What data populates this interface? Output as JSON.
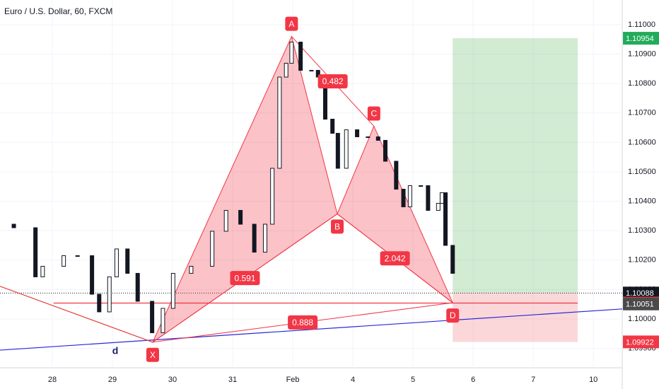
{
  "chart_data": {
    "type": "candlestick",
    "title": "Euro / U.S. Dollar, 60, FXCM",
    "x": [
      -0.87,
      -0.64,
      -0.28,
      -0.16,
      0.19,
      0.42,
      0.66,
      0.78,
      0.95,
      1.07,
      1.25,
      1.42,
      1.66,
      1.84,
      2.01,
      2.31,
      2.66,
      2.89,
      3.13,
      3.36,
      3.54,
      3.66,
      3.78,
      3.89,
      3.98,
      4.13,
      4.31,
      4.42,
      4.54,
      4.66,
      4.75,
      4.89,
      5.07,
      5.25,
      5.42,
      5.54,
      5.72,
      5.84,
      5.95,
      6.13,
      6.25,
      6.42,
      6.48,
      6.54,
      6.66
    ],
    "values": [
      1.10322,
      1.1031,
      1.10143,
      1.10179,
      1.10215,
      1.10215,
      1.10084,
      1.10024,
      1.10143,
      1.10238,
      1.10155,
      1.1006,
      1.09953,
      1.10036,
      1.10155,
      1.10179,
      1.10298,
      1.10369,
      1.10322,
      1.10227,
      1.10322,
      1.10512,
      1.10822,
      1.10869,
      1.10941,
      1.10845,
      1.10845,
      1.10822,
      1.10679,
      1.10631,
      1.10512,
      1.10643,
      1.10619,
      1.10619,
      1.10607,
      1.10536,
      1.10441,
      1.10381,
      1.10453,
      1.10453,
      1.10369,
      1.10393,
      1.10429,
      1.1025,
      1.10155
    ],
    "xlim": [
      -0.87,
      9.48
    ],
    "ylim": [
      1.09834,
      1.11084
    ],
    "xticks": [
      {
        "value": 0,
        "label": "28"
      },
      {
        "value": 1,
        "label": "29"
      },
      {
        "value": 2,
        "label": "30"
      },
      {
        "value": 3,
        "label": "31"
      },
      {
        "value": 4,
        "label": "Feb"
      },
      {
        "value": 5,
        "label": "4"
      },
      {
        "value": 6,
        "label": "5"
      },
      {
        "value": 7,
        "label": "6"
      },
      {
        "value": 8,
        "label": "7"
      },
      {
        "value": 9,
        "label": "10"
      }
    ],
    "yticks": [
      {
        "value": 1.099,
        "label": "1.09900"
      },
      {
        "value": 1.1,
        "label": "1.10000"
      },
      {
        "value": 1.101,
        "label": "1.10100"
      },
      {
        "value": 1.102,
        "label": "1.10200"
      },
      {
        "value": 1.103,
        "label": "1.10300"
      },
      {
        "value": 1.104,
        "label": "1.10400"
      },
      {
        "value": 1.105,
        "label": "1.10500"
      },
      {
        "value": 1.106,
        "label": "1.10600"
      },
      {
        "value": 1.107,
        "label": "1.10700"
      },
      {
        "value": 1.108,
        "label": "1.10800"
      },
      {
        "value": 1.109,
        "label": "1.10900"
      },
      {
        "value": 1.11,
        "label": "1.11000"
      }
    ],
    "grid": true,
    "pattern": {
      "points": [
        {
          "label": "X",
          "x": 1.67,
          "price": 1.09921
        },
        {
          "label": "A",
          "x": 3.98,
          "price": 1.1096
        },
        {
          "label": "B",
          "x": 4.74,
          "price": 1.10357
        },
        {
          "label": "C",
          "x": 5.35,
          "price": 1.10655
        },
        {
          "label": "D",
          "x": 6.66,
          "price": 1.10055
        }
      ],
      "ratios": [
        0.591,
        0.482,
        2.042,
        0.888
      ]
    },
    "position": {
      "entry": 1.10088,
      "target": 1.10954,
      "stop": 1.09922,
      "x_start": 6.66,
      "x_end": 8.74
    },
    "level": {
      "price": 1.10054,
      "x": [
        0.02,
        8.74
      ]
    },
    "trendlines": [
      {
        "color": "#2929d8",
        "x": [
          -0.87,
          9.48
        ],
        "price": [
          1.09894,
          1.10034
        ]
      },
      {
        "color": "#e53935",
        "x": [
          -0.87,
          1.67
        ],
        "price": [
          1.10111,
          1.09921
        ]
      }
    ],
    "price_tags": [
      {
        "value": 1.10954,
        "color": "#22ab5a"
      },
      {
        "value": 1.10088,
        "color": "#131722"
      },
      {
        "value": 1.10054,
        "color": "#f23645"
      },
      {
        "value": 1.10051,
        "color": "#4a4a4a"
      },
      {
        "value": 1.09922,
        "color": "#f23645"
      }
    ],
    "annotation": "d"
  }
}
